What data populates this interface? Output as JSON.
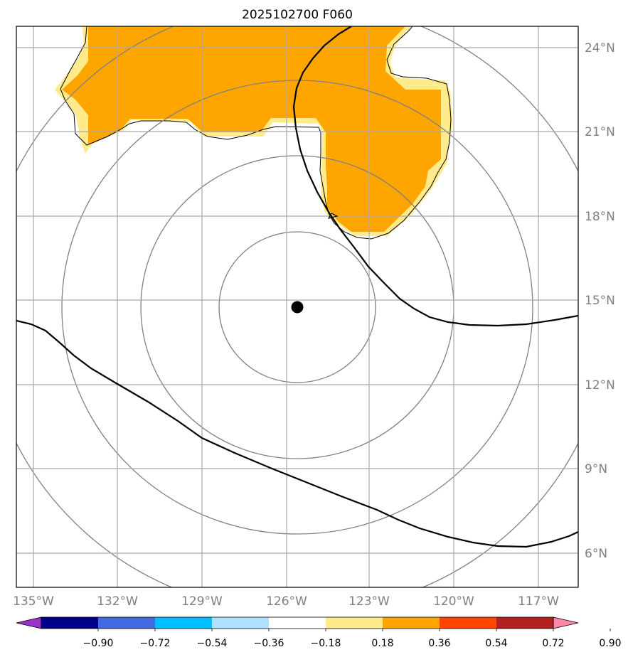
{
  "title": "2025102700 F060",
  "map": {
    "lon_ticks": [
      "135°W",
      "132°W",
      "129°W",
      "126°W",
      "123°W",
      "120°W",
      "117°W"
    ],
    "lat_ticks": [
      "24°N",
      "21°N",
      "18°N",
      "15°N",
      "12°N",
      "9°N",
      "6°N"
    ],
    "center_marker": {
      "lon": -125.6,
      "lat": 14.8
    },
    "fill_color": "#ffa500",
    "edge_color": "#ffeb8c"
  },
  "colorbar": {
    "colors": [
      "#9932cc",
      "#00008b",
      "#4169e1",
      "#00bfff",
      "#b0e0ff",
      "#ffffff",
      "#ffeb8c",
      "#ffa500",
      "#ff4500",
      "#b22222",
      "#ff88aa"
    ],
    "tick_labels": [
      "−0.90",
      "−0.72",
      "−0.54",
      "−0.36",
      "−0.18",
      "0.18",
      "0.36",
      "0.54",
      "0.72",
      "0.90"
    ]
  }
}
